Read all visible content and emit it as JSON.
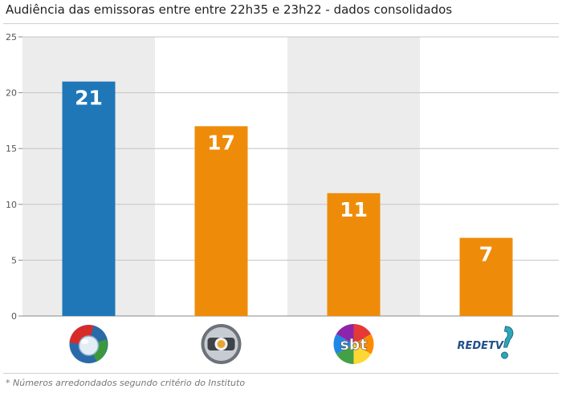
{
  "title": "Audiência das emissoras entre entre 22h35 e 23h22 - dados consolidados",
  "footnote": "* Números arredondados segundo critério do Instituto",
  "colors": {
    "record": "#1f77b8",
    "others": "#ee8c0a",
    "band": "#ececec",
    "grid": "#c4c4c4"
  },
  "chart_data": {
    "type": "bar",
    "categories": [
      "Record",
      "Globo",
      "SBT",
      "RedeTV!"
    ],
    "values": [
      21,
      17,
      11,
      7
    ],
    "data_labels": [
      "21",
      "17",
      "11",
      "7"
    ],
    "bar_colors": [
      "#1f77b8",
      "#ee8c0a",
      "#ee8c0a",
      "#ee8c0a"
    ],
    "category_display": [
      "record-logo-icon",
      "globo-logo-icon",
      "sbt-logo-icon",
      "redetv-logo-icon"
    ],
    "y_ticks": [
      0,
      5,
      10,
      15,
      20,
      25
    ],
    "ylim": [
      0,
      25
    ],
    "grid": true,
    "legend": "none",
    "title": "Audiência das emissoras entre entre 22h35 e 23h22 - dados consolidados",
    "xlabel": "",
    "ylabel": ""
  }
}
